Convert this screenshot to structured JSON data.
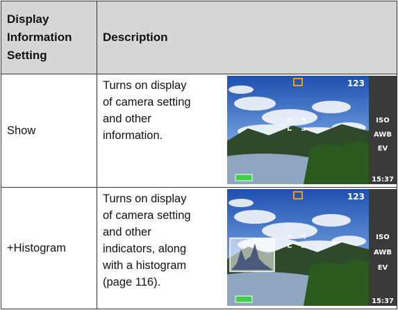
{
  "table": {
    "header": {
      "setting": [
        "Display",
        "Information",
        "Setting"
      ],
      "description": "Description"
    },
    "rows": [
      {
        "setting": "Show",
        "description": [
          "Turns on display",
          "of camera setting",
          "and other",
          "information."
        ],
        "screen": {
          "counter": "123",
          "icons": [
            "ISO",
            "AWB",
            "EV"
          ],
          "time": "15:37",
          "histogram": false
        }
      },
      {
        "setting": "+Histogram",
        "description": [
          "Turns on display",
          "of camera setting",
          "and other",
          "indicators, along",
          "with a histogram",
          "(page 116)."
        ],
        "screen": {
          "counter": "123",
          "icons": [
            "ISO",
            "AWB",
            "EV"
          ],
          "time": "15:37",
          "histogram": true
        }
      }
    ]
  }
}
